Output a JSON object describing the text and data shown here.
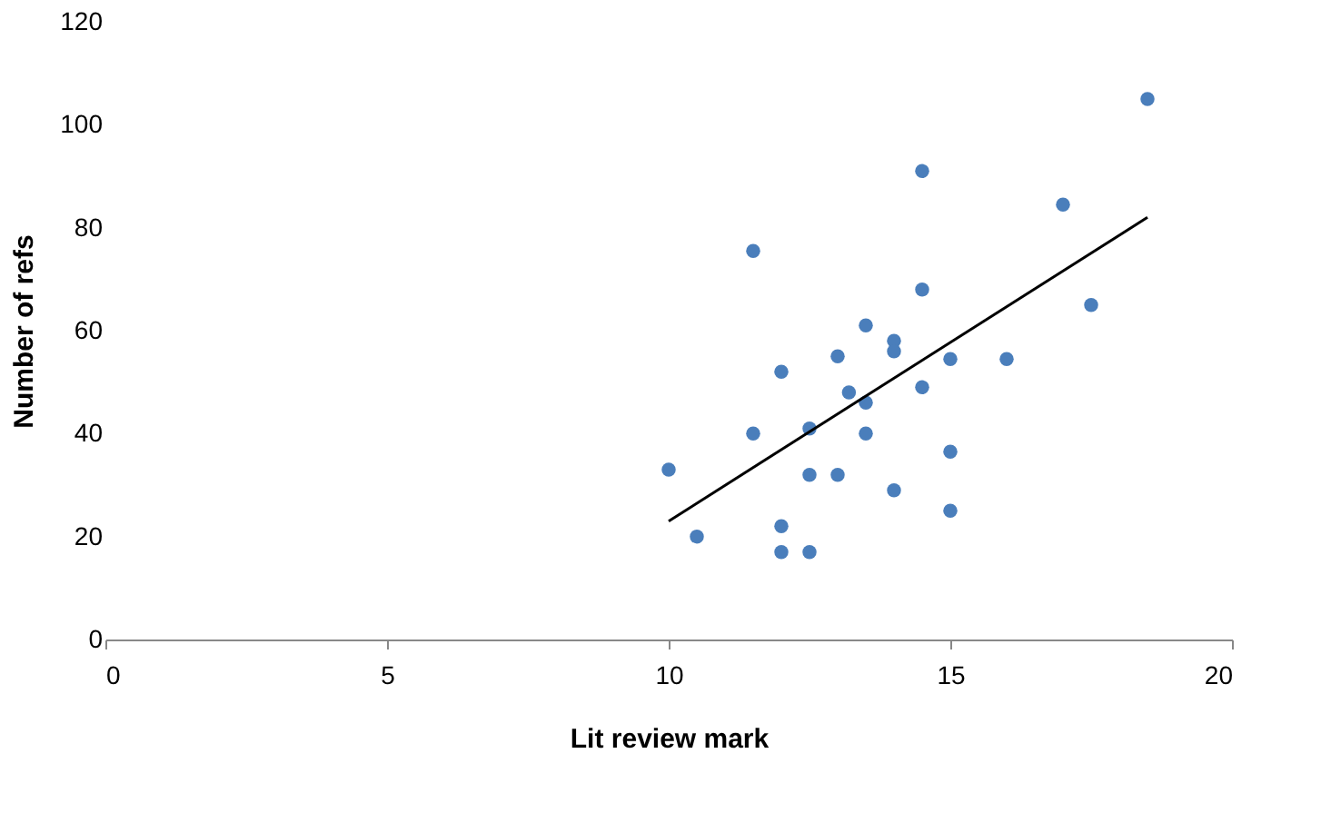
{
  "chart_data": {
    "type": "scatter",
    "xlabel": "Lit review mark",
    "ylabel": "Number of refs",
    "xlim": [
      0,
      20
    ],
    "xticks": [
      0,
      5,
      10,
      15,
      20
    ],
    "ylim": [
      0,
      120
    ],
    "yticks": [
      0,
      20,
      40,
      60,
      80,
      100,
      120
    ],
    "grid": false,
    "series": [
      {
        "type": "scatter",
        "marker": "circle",
        "color": "#4a7ebb",
        "x": [
          10,
          10.5,
          11.5,
          11.5,
          12,
          12,
          12,
          12.5,
          12.5,
          12.5,
          13,
          13,
          13.2,
          13.5,
          13.5,
          13.5,
          14,
          14,
          14,
          14.5,
          14.5,
          14.5,
          15,
          15,
          15,
          16,
          17,
          17.5,
          18.5
        ],
        "values": [
          33,
          20,
          75.5,
          40,
          52,
          22,
          17,
          41,
          32,
          17,
          55,
          32,
          48,
          61,
          46,
          40,
          58,
          56,
          29,
          91,
          68,
          49,
          54.5,
          36.5,
          25,
          54.5,
          84.5,
          65,
          105
        ]
      },
      {
        "type": "line",
        "color": "#000000",
        "x": [
          10,
          18.5
        ],
        "values": [
          23,
          82
        ]
      }
    ]
  }
}
